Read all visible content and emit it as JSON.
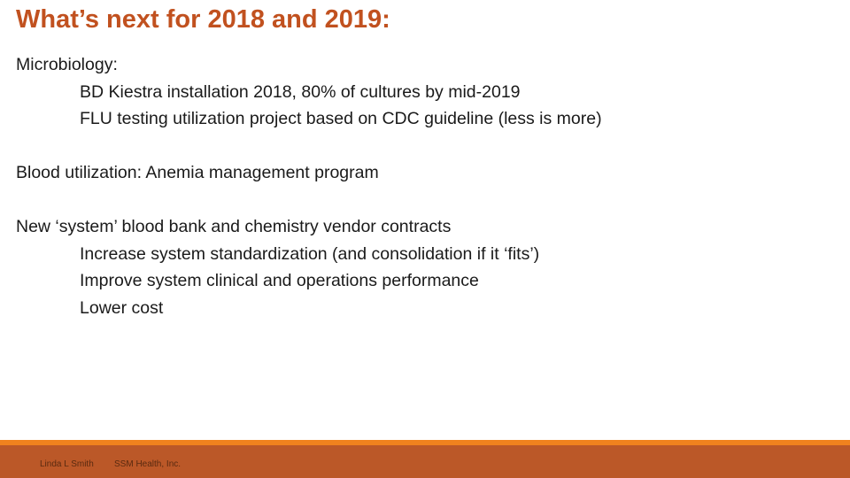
{
  "title": "What’s next for 2018 and 2019:",
  "body": {
    "microbiology_heading": "Microbiology:",
    "microbiology_items": [
      "BD Kiestra installation 2018, 80% of cultures by mid-2019",
      "FLU testing utilization project based on CDC guideline (less is more)"
    ],
    "blood_utilization": "Blood utilization:  Anemia management program",
    "contracts_heading": "New ‘system’ blood bank and chemistry vendor contracts",
    "contracts_items": [
      "Increase system standardization (and consolidation if it ‘fits’)",
      "Improve system clinical and operations performance",
      "Lower cost"
    ]
  },
  "footer": {
    "author": "Linda L Smith",
    "organization": "SSM Health, Inc."
  },
  "colors": {
    "title": "#c1511f",
    "footer_bar": "#bb5828",
    "footer_accent": "#f0821e"
  }
}
